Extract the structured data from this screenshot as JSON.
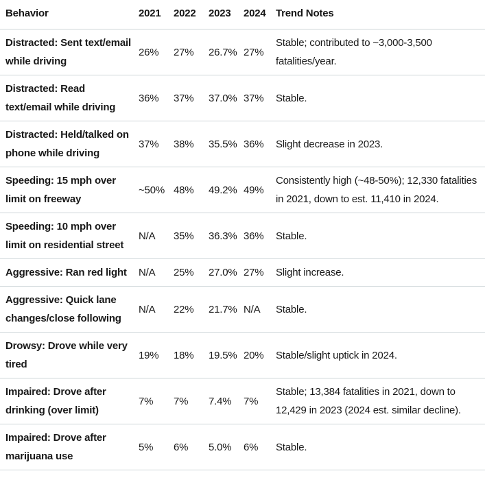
{
  "colors": {
    "background": "#ffffff",
    "text": "#191919",
    "divider": "#cdd5d8"
  },
  "table": {
    "columns": [
      "Behavior",
      "2021",
      "2022",
      "2023",
      "2024",
      "Trend Notes"
    ],
    "rows": [
      {
        "behavior": "Distracted: Sent text/email while driving",
        "y2021": "26%",
        "y2022": "27%",
        "y2023": "26.7%",
        "y2024": "27%",
        "notes": "Stable; contributed to ~3,000-3,500 fatalities/year."
      },
      {
        "behavior": "Distracted: Read text/email while driving",
        "y2021": "36%",
        "y2022": "37%",
        "y2023": "37.0%",
        "y2024": "37%",
        "notes": "Stable."
      },
      {
        "behavior": "Distracted: Held/talked on phone while driving",
        "y2021": "37%",
        "y2022": "38%",
        "y2023": "35.5%",
        "y2024": "36%",
        "notes": "Slight decrease in 2023."
      },
      {
        "behavior": "Speeding: 15 mph over limit on freeway",
        "y2021": "~50%",
        "y2022": "48%",
        "y2023": "49.2%",
        "y2024": "49%",
        "notes": "Consistently high (~48-50%); 12,330 fatalities in 2021, down to est. 11,410 in 2024."
      },
      {
        "behavior": "Speeding: 10 mph over limit on residential street",
        "y2021": "N/A",
        "y2022": "35%",
        "y2023": "36.3%",
        "y2024": "36%",
        "notes": "Stable."
      },
      {
        "behavior": "Aggressive: Ran red light",
        "y2021": "N/A",
        "y2022": "25%",
        "y2023": "27.0%",
        "y2024": "27%",
        "notes": "Slight increase."
      },
      {
        "behavior": "Aggressive: Quick lane changes/close following",
        "y2021": "N/A",
        "y2022": "22%",
        "y2023": "21.7%",
        "y2024": "N/A",
        "notes": "Stable."
      },
      {
        "behavior": "Drowsy: Drove while very tired",
        "y2021": "19%",
        "y2022": "18%",
        "y2023": "19.5%",
        "y2024": "20%",
        "notes": "Stable/slight uptick in 2024."
      },
      {
        "behavior": "Impaired: Drove after drinking (over limit)",
        "y2021": "7%",
        "y2022": "7%",
        "y2023": "7.4%",
        "y2024": "7%",
        "notes": "Stable; 13,384 fatalities in 2021, down to 12,429 in 2023 (2024 est. similar decline)."
      },
      {
        "behavior": "Impaired: Drove after marijuana use",
        "y2021": "5%",
        "y2022": "6%",
        "y2023": "5.0%",
        "y2024": "6%",
        "notes": "Stable."
      }
    ]
  }
}
